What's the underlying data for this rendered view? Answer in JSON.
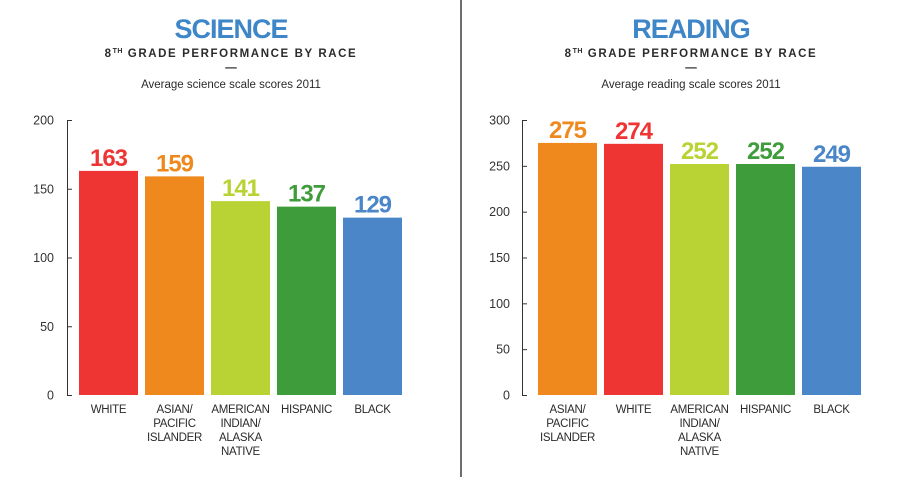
{
  "colors": {
    "red": "#ef3434",
    "orange": "#ef891e",
    "lime": "#b8d333",
    "green": "#3f9c3a",
    "blue": "#4a86c8",
    "title": "#3e86c8"
  },
  "chart_data": [
    {
      "type": "bar",
      "title": "SCIENCE",
      "subtitle": {
        "num": "8",
        "sup": "TH",
        "rest": "GRADE PERFORMANCE BY RACE"
      },
      "separator": "—",
      "caption": "Average science scale scores 2011",
      "categories": [
        [
          "WHITE"
        ],
        [
          "ASIAN/",
          "PACIFIC",
          "ISLANDER"
        ],
        [
          "AMERICAN",
          "INDIAN/",
          "ALASKA",
          "NATIVE"
        ],
        [
          "HISPANIC"
        ],
        [
          "BLACK"
        ]
      ],
      "values": [
        163,
        159,
        141,
        137,
        129
      ],
      "bar_colors": [
        "#ef3434",
        "#ef891e",
        "#b8d333",
        "#3f9c3a",
        "#4a86c8"
      ],
      "yticks": [
        0,
        50,
        100,
        150,
        200
      ],
      "ylim": [
        0,
        200
      ],
      "grid": false,
      "legend": "none"
    },
    {
      "type": "bar",
      "title": "READING",
      "subtitle": {
        "num": "8",
        "sup": "TH",
        "rest": "GRADE PERFORMANCE BY RACE"
      },
      "separator": "—",
      "caption": "Average reading scale scores 2011",
      "categories": [
        [
          "ASIAN/",
          "PACIFIC",
          "ISLANDER"
        ],
        [
          "WHITE"
        ],
        [
          "AMERICAN",
          "INDIAN/",
          "ALASKA",
          "NATIVE"
        ],
        [
          "HISPANIC"
        ],
        [
          "BLACK"
        ]
      ],
      "values": [
        275,
        274,
        252,
        252,
        249
      ],
      "bar_colors": [
        "#ef891e",
        "#ef3434",
        "#b8d333",
        "#3f9c3a",
        "#4a86c8"
      ],
      "yticks": [
        0,
        50,
        100,
        150,
        200,
        250,
        300
      ],
      "ylim": [
        0,
        300
      ],
      "grid": false,
      "legend": "none"
    }
  ]
}
